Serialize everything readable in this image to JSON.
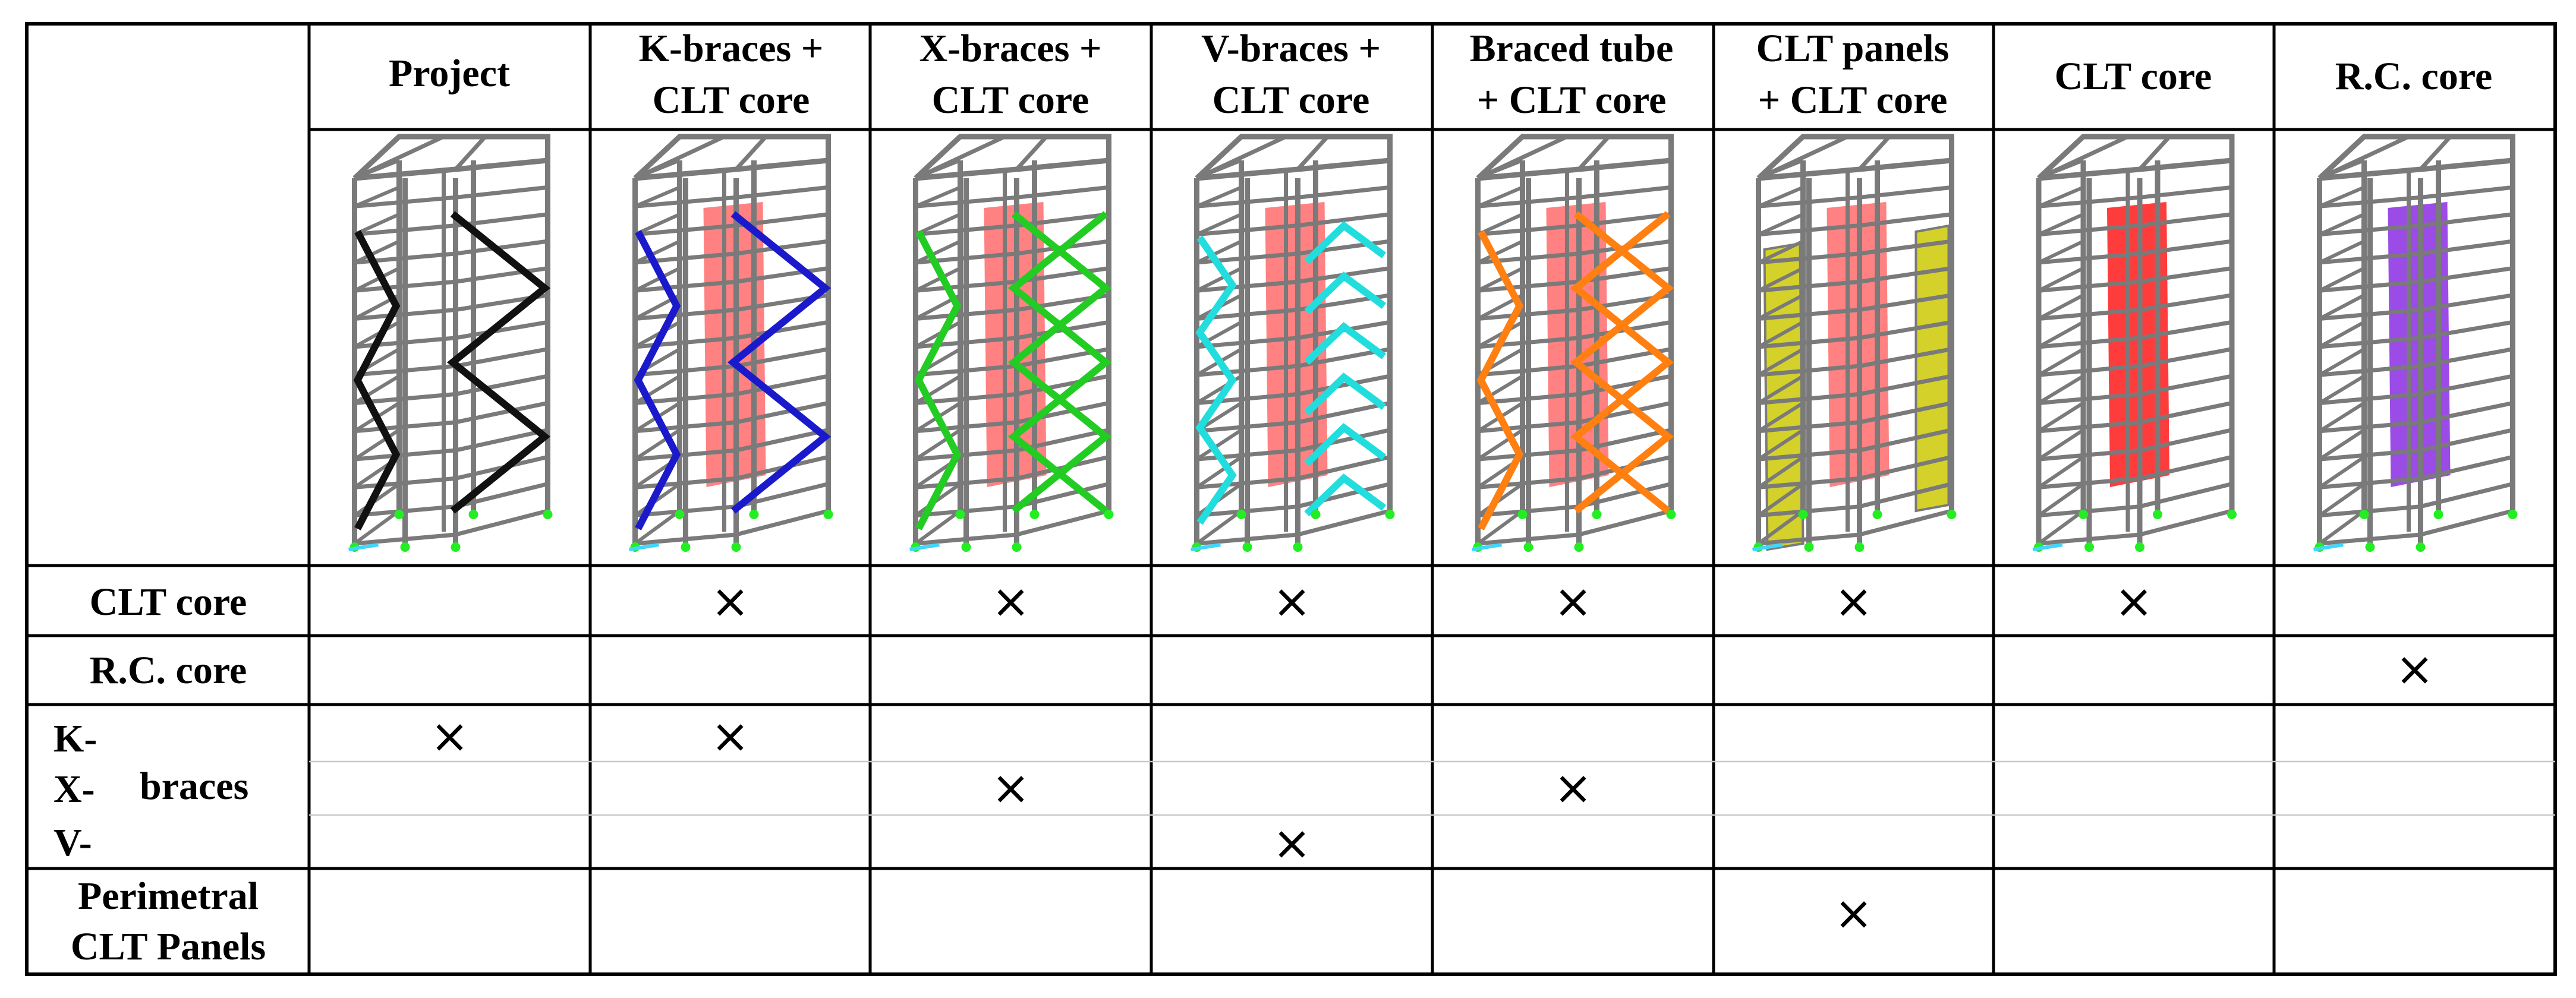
{
  "columns": [
    {
      "key": "project",
      "lines": [
        "Project"
      ],
      "brace_color": "#111111",
      "core_color": null,
      "pattern": "k",
      "panels": false
    },
    {
      "key": "k-braces-clt-core",
      "lines": [
        "K-braces +",
        "CLT core"
      ],
      "brace_color": "#1a1acc",
      "core_color": "#ff6b6b",
      "pattern": "k",
      "panels": false
    },
    {
      "key": "x-braces-clt-core",
      "lines": [
        "X-braces +",
        "CLT core"
      ],
      "brace_color": "#22cc22",
      "core_color": "#ff6b6b",
      "pattern": "x",
      "panels": false
    },
    {
      "key": "v-braces-clt-core",
      "lines": [
        "V-braces +",
        "CLT core"
      ],
      "brace_color": "#22dddd",
      "core_color": "#ff6b6b",
      "pattern": "v",
      "panels": false
    },
    {
      "key": "braced-tube-clt-core",
      "lines": [
        "Braced tube",
        "+ CLT core"
      ],
      "brace_color": "#ff7f11",
      "core_color": "#ff6b6b",
      "pattern": "tube",
      "panels": false
    },
    {
      "key": "clt-panels-clt-core",
      "lines": [
        "CLT panels",
        "+ CLT core"
      ],
      "brace_color": null,
      "core_color": "#ff6b6b",
      "pattern": "none",
      "panels": true
    },
    {
      "key": "clt-core",
      "lines": [
        "CLT core"
      ],
      "brace_color": null,
      "core_color": "#ff1a1a",
      "pattern": "none",
      "panels": false
    },
    {
      "key": "rc-core",
      "lines": [
        "R.C. core"
      ],
      "brace_color": null,
      "core_color": "#8a2be2",
      "pattern": "none",
      "panels": false
    }
  ],
  "rows": {
    "clt_core": {
      "label": "CLT core"
    },
    "rc_core": {
      "label": "R.C. core"
    },
    "braces": {
      "k_label": "K-",
      "x_label": "X-",
      "v_label": "V-",
      "word": "braces"
    },
    "perimetral": {
      "label_line1": "Perimetral",
      "label_line2": "CLT Panels"
    }
  },
  "mark_symbol": "×",
  "marks": [
    {
      "row": "clt_core",
      "cols": [
        1,
        2,
        3,
        4,
        5,
        6
      ]
    },
    {
      "row": "rc_core",
      "cols": [
        7
      ]
    },
    {
      "row": "k",
      "cols": [
        0,
        1
      ]
    },
    {
      "row": "x",
      "cols": [
        2,
        4
      ]
    },
    {
      "row": "v",
      "cols": [
        3
      ]
    },
    {
      "row": "perimetral",
      "cols": [
        5
      ]
    }
  ],
  "colors": {
    "frame": "#7a7a7a",
    "support": "#22ee22",
    "base": "#3fd6ff",
    "panel": "#d4d22a",
    "grid_line": "#000000",
    "sub_line": "#c8c8c8"
  }
}
